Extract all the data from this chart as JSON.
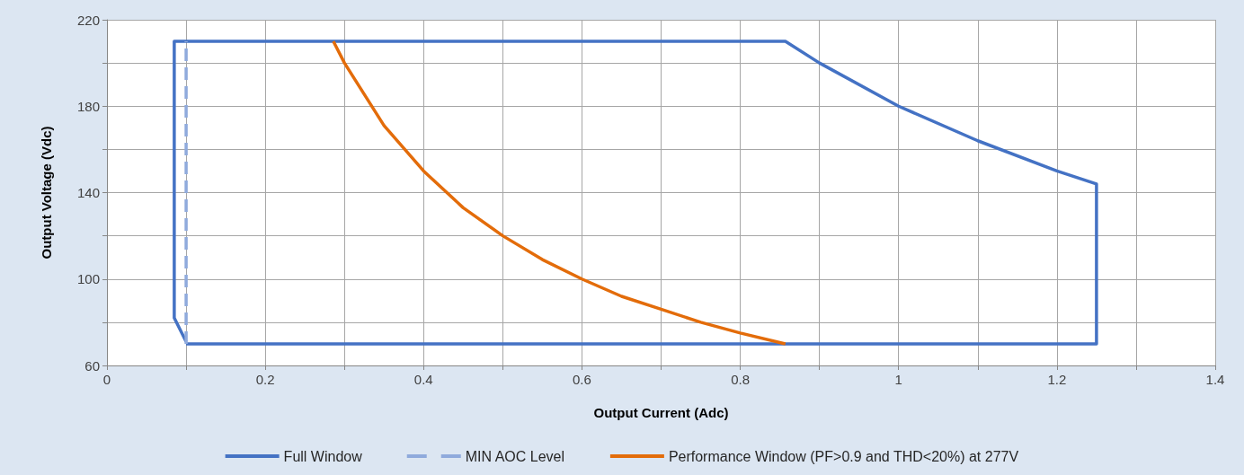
{
  "chart_data": {
    "type": "line",
    "xlabel": "Output Current (Adc)",
    "ylabel": "Output Voltage (Vdc)",
    "xlim": [
      0,
      1.4
    ],
    "xticks": [
      0,
      {
        "value": 0.1,
        "label": null
      },
      0.2,
      {
        "value": 0.3,
        "label": null
      },
      0.4,
      {
        "value": 0.5,
        "label": null
      },
      0.6,
      {
        "value": 0.7,
        "label": null
      },
      0.8,
      {
        "value": 0.9,
        "label": null
      },
      1,
      {
        "value": 1.1,
        "label": null
      },
      1.2,
      {
        "value": 1.3,
        "label": null
      },
      1.4
    ],
    "ylim": [
      60,
      220
    ],
    "yticks": [
      60,
      {
        "value": 80,
        "label": null
      },
      100,
      {
        "value": 120,
        "label": null
      },
      140,
      {
        "value": 160,
        "label": null
      },
      180,
      {
        "value": 200,
        "label": null
      },
      220
    ],
    "grid": true,
    "legend": "bottom",
    "marker": "none",
    "series": [
      {
        "name": "Full Window",
        "color": "#4472c4",
        "line_style": "solid",
        "x": [
          0.1,
          1.25,
          1.25,
          1.2,
          1.1,
          1.0,
          0.9,
          0.857,
          0.085,
          0.085,
          0.1
        ],
        "values": [
          70,
          70,
          144,
          150,
          164,
          180,
          200,
          210,
          210,
          82,
          71
        ]
      },
      {
        "name": "MIN AOC Level",
        "color": "#8faadc",
        "line_style": "dashed",
        "x": [
          0.1,
          0.1
        ],
        "values": [
          70,
          210
        ]
      },
      {
        "name": "Performance Window (PF>0.9 and THD<20%) at 277V",
        "color": "#e36c0a",
        "line_style": "solid",
        "x": [
          0.286,
          0.3,
          0.35,
          0.4,
          0.45,
          0.5,
          0.55,
          0.6,
          0.65,
          0.7,
          0.75,
          0.8,
          0.857
        ],
        "values": [
          210,
          200,
          171,
          150,
          133,
          120,
          109,
          100,
          92,
          86,
          80,
          75,
          70
        ]
      }
    ]
  }
}
